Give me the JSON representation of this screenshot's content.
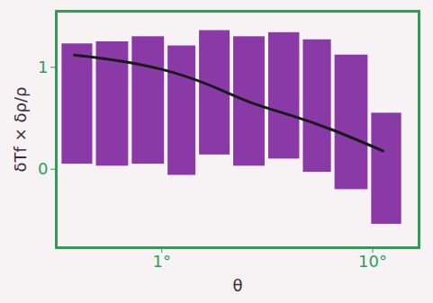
{
  "chart_data": {
    "type": "bar",
    "x_label": "θ",
    "y_label": "δTf × δρ/ρ",
    "log": "x",
    "xlim": [
      0.316,
      16.6
    ],
    "xticks": [
      {
        "value": 1,
        "label": "1°"
      },
      {
        "value": 10,
        "label": "10°"
      }
    ],
    "ylim": [
      -0.77,
      1.55
    ],
    "yticks": [
      0,
      1
    ],
    "grid": false,
    "color": "#8a3aa6",
    "bins": [
      0.33,
      0.48,
      0.71,
      1.05,
      1.48,
      2.15,
      3.15,
      4.6,
      6.5,
      9.7,
      14
    ],
    "lows": [
      0.05,
      0.03,
      0.05,
      -0.06,
      0.14,
      0.03,
      0.1,
      -0.03,
      -0.2,
      -0.54
    ],
    "highs": [
      1.23,
      1.25,
      1.3,
      1.21,
      1.36,
      1.3,
      1.34,
      1.27,
      1.12,
      0.55
    ],
    "line": {
      "x": [
        0.385,
        0.6,
        1,
        1.66,
        2.6,
        4.07,
        6.37,
        11.2
      ],
      "values": [
        1.12,
        1.07,
        0.98,
        0.83,
        0.66,
        0.53,
        0.39,
        0.18
      ],
      "color": "#1a1a1a"
    }
  }
}
